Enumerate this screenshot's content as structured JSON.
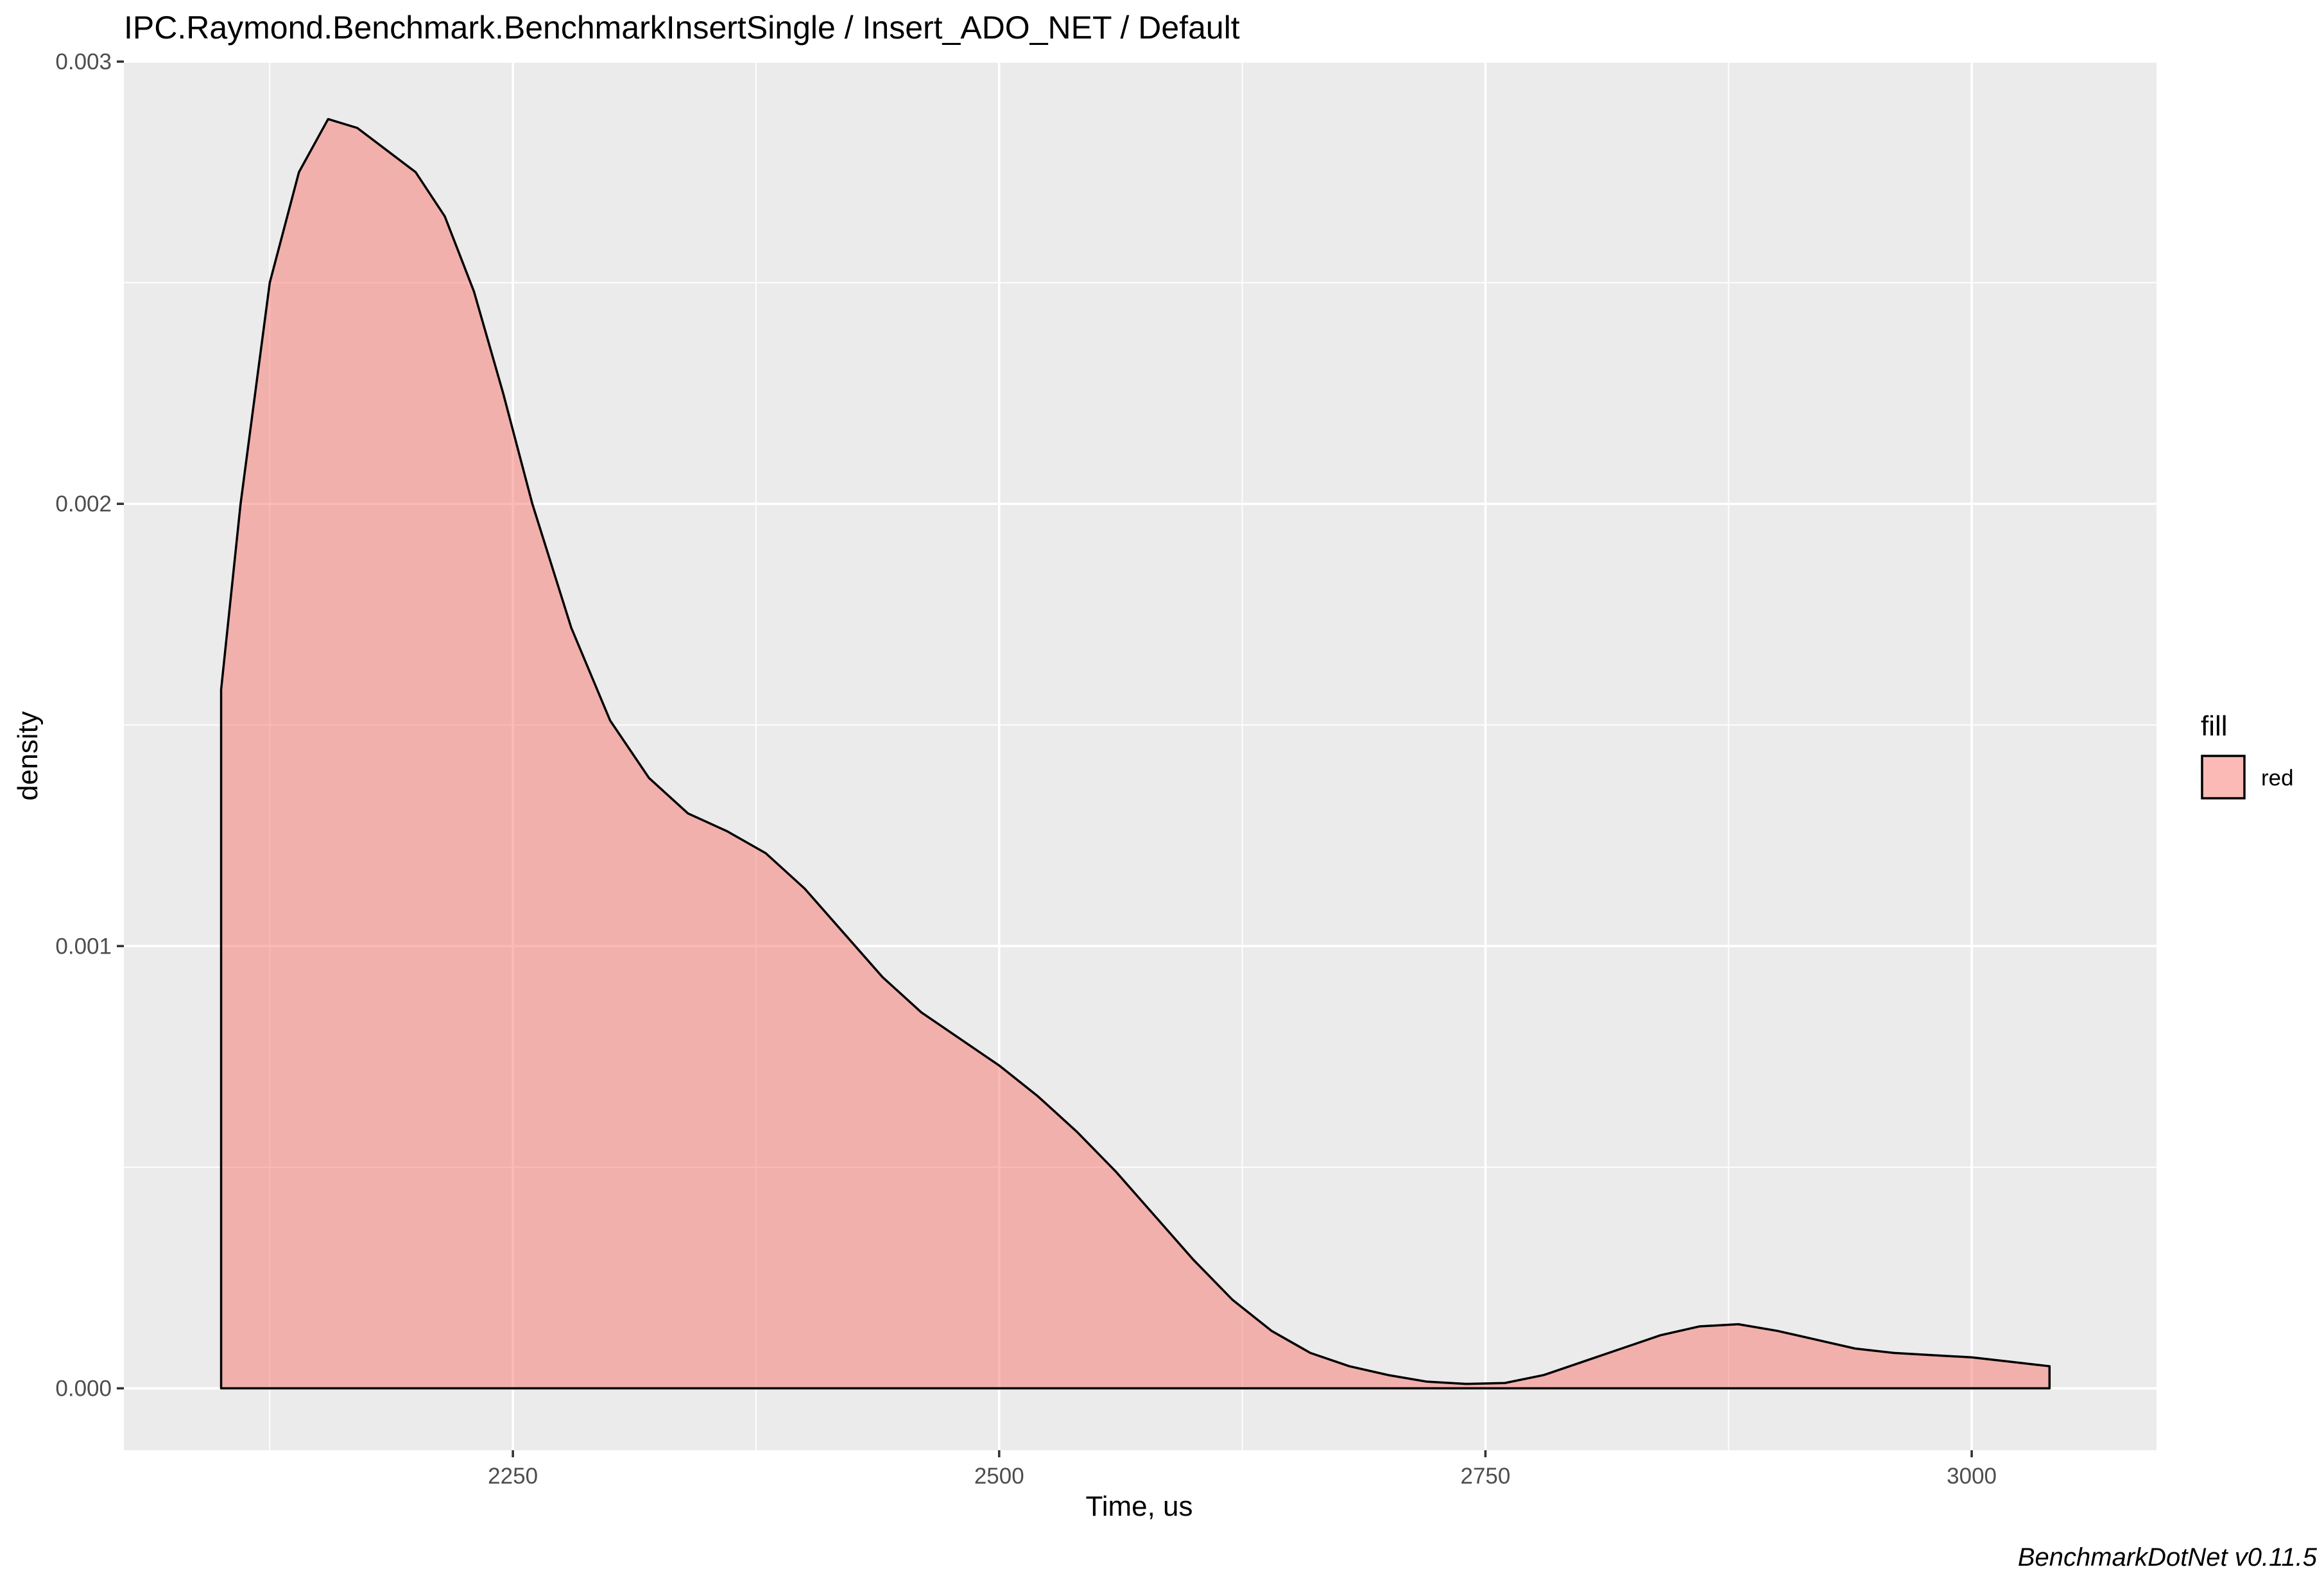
{
  "chart_data": {
    "type": "area",
    "title": "IPC.Raymond.Benchmark.BenchmarkInsertSingle / Insert_ADO_NET / Default",
    "xlabel": "Time, us",
    "ylabel": "density",
    "xlim": [
      2050,
      3095
    ],
    "ylim": [
      -0.00014,
      0.003
    ],
    "x_ticks": [
      2250,
      2500,
      2750,
      3000
    ],
    "x_tick_labels": [
      "2250",
      "2500",
      "2750",
      "3000"
    ],
    "y_ticks": [
      0,
      0.001,
      0.002,
      0.003
    ],
    "y_tick_labels": [
      "0.000",
      "0.001",
      "0.002",
      "0.003"
    ],
    "grid": true,
    "legend": {
      "title": "fill",
      "position": "right",
      "items": [
        {
          "label": "red",
          "color": "#F8766D"
        }
      ]
    },
    "caption": "BenchmarkDotNet v0.11.5",
    "series": [
      {
        "name": "red",
        "fill": "#F8766D",
        "fill_opacity": 0.5,
        "stroke": "#000000",
        "points": [
          [
            2100,
            0.00158
          ],
          [
            2110,
            0.002
          ],
          [
            2125,
            0.0025
          ],
          [
            2140,
            0.00275
          ],
          [
            2155,
            0.00287
          ],
          [
            2170,
            0.00285
          ],
          [
            2185,
            0.0028
          ],
          [
            2200,
            0.00275
          ],
          [
            2215,
            0.00265
          ],
          [
            2230,
            0.00248
          ],
          [
            2245,
            0.00225
          ],
          [
            2260,
            0.002
          ],
          [
            2280,
            0.00172
          ],
          [
            2300,
            0.00151
          ],
          [
            2320,
            0.00138
          ],
          [
            2340,
            0.0013
          ],
          [
            2360,
            0.00126
          ],
          [
            2380,
            0.00121
          ],
          [
            2400,
            0.00113
          ],
          [
            2420,
            0.00103
          ],
          [
            2440,
            0.00093
          ],
          [
            2460,
            0.00085
          ],
          [
            2480,
            0.00079
          ],
          [
            2500,
            0.00073
          ],
          [
            2520,
            0.00066
          ],
          [
            2540,
            0.00058
          ],
          [
            2560,
            0.00049
          ],
          [
            2580,
            0.00039
          ],
          [
            2600,
            0.00029
          ],
          [
            2620,
            0.0002
          ],
          [
            2640,
            0.00013
          ],
          [
            2660,
            8e-05
          ],
          [
            2680,
            5e-05
          ],
          [
            2700,
            3e-05
          ],
          [
            2720,
            1.5e-05
          ],
          [
            2740,
            1e-05
          ],
          [
            2760,
            1.2e-05
          ],
          [
            2780,
            3e-05
          ],
          [
            2800,
            6e-05
          ],
          [
            2820,
            9e-05
          ],
          [
            2840,
            0.00012
          ],
          [
            2860,
            0.00014
          ],
          [
            2880,
            0.000145
          ],
          [
            2900,
            0.00013
          ],
          [
            2920,
            0.00011
          ],
          [
            2940,
            9e-05
          ],
          [
            2960,
            8e-05
          ],
          [
            2980,
            7.5e-05
          ],
          [
            3000,
            7e-05
          ],
          [
            3020,
            6e-05
          ],
          [
            3040,
            5e-05
          ]
        ]
      }
    ]
  }
}
